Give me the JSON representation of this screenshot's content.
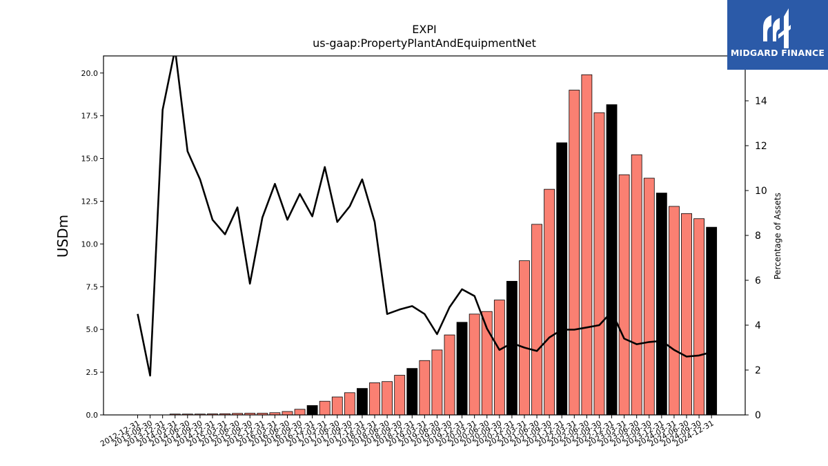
{
  "chart_data": {
    "type": "bar",
    "title": "EXPI",
    "subtitle": "us-gaap:PropertyPlantAndEquipmentNet",
    "ylabel": "USDm",
    "y2label": "Percentage of Assets",
    "ylim": [
      0,
      21
    ],
    "y2lim": [
      0,
      16
    ],
    "yticks": [
      "0.0",
      "2.5",
      "5.0",
      "7.5",
      "10.0",
      "12.5",
      "15.0",
      "17.5",
      "20.0"
    ],
    "y2ticks": [
      "0",
      "2",
      "4",
      "6",
      "8",
      "10",
      "12",
      "14"
    ],
    "categories": [
      "2012-12-31",
      "2013-09-30",
      "2013-12-31",
      "2014-03-31",
      "2014-06-30",
      "2014-09-30",
      "2014-12-31",
      "2015-03-31",
      "2015-06-30",
      "2015-09-30",
      "2015-12-31",
      "2016-03-31",
      "2016-06-30",
      "2016-09-30",
      "2016-12-31",
      "2017-03-31",
      "2017-06-30",
      "2017-09-30",
      "2017-12-31",
      "2018-03-31",
      "2018-06-30",
      "2018-09-30",
      "2018-12-31",
      "2019-03-31",
      "2019-06-30",
      "2019-09-30",
      "2019-12-31",
      "2020-03-31",
      "2020-06-30",
      "2020-09-30",
      "2020-12-31",
      "2021-03-31",
      "2021-06-30",
      "2021-09-30",
      "2021-12-31",
      "2022-03-31",
      "2022-06-30",
      "2022-09-30",
      "2022-12-31",
      "2023-03-31",
      "2023-06-30",
      "2023-09-30",
      "2023-12-31",
      "2024-03-31",
      "2024-06-30",
      "2024-09-30",
      "2024-12-31"
    ],
    "series": [
      {
        "axis": "left",
        "kind": "bar",
        "values": [
          0,
          0,
          0,
          0.05,
          0.05,
          0.05,
          0.06,
          0.07,
          0.09,
          0.1,
          0.1,
          0.13,
          0.2,
          0.33,
          0.55,
          0.8,
          1.05,
          1.3,
          1.55,
          1.88,
          1.95,
          2.32,
          2.72,
          3.18,
          3.8,
          4.68,
          5.42,
          5.9,
          6.05,
          6.72,
          7.82,
          9.02,
          11.15,
          13.2,
          15.92,
          19.0,
          19.9,
          17.68,
          18.15,
          14.05,
          15.22,
          13.85,
          12.98,
          12.2,
          11.78,
          11.48,
          10.98
        ],
        "colors": [
          "#fa8072",
          "#fa8072",
          "#fa8072",
          "#fa8072",
          "#fa8072",
          "#fa8072",
          "#fa8072",
          "#fa8072",
          "#fa8072",
          "#fa8072",
          "#fa8072",
          "#fa8072",
          "#fa8072",
          "#fa8072",
          "#000000",
          "#fa8072",
          "#fa8072",
          "#fa8072",
          "#000000",
          "#fa8072",
          "#fa8072",
          "#fa8072",
          "#000000",
          "#fa8072",
          "#fa8072",
          "#fa8072",
          "#000000",
          "#fa8072",
          "#fa8072",
          "#fa8072",
          "#000000",
          "#fa8072",
          "#fa8072",
          "#fa8072",
          "#000000",
          "#fa8072",
          "#fa8072",
          "#fa8072",
          "#000000",
          "#fa8072",
          "#fa8072",
          "#fa8072",
          "#000000",
          "#fa8072",
          "#fa8072",
          "#fa8072",
          "#000000"
        ]
      },
      {
        "axis": "right",
        "kind": "line",
        "color": "#000000",
        "values": [
          4.5,
          1.75,
          13.6,
          16.3,
          11.75,
          10.5,
          8.7,
          8.05,
          9.25,
          5.85,
          8.8,
          10.3,
          8.7,
          9.85,
          8.85,
          11.05,
          8.6,
          9.3,
          10.5,
          8.6,
          4.5,
          4.7,
          4.85,
          4.5,
          3.6,
          4.8,
          5.6,
          5.3,
          3.85,
          2.9,
          3.2,
          3.0,
          2.85,
          3.45,
          3.8,
          3.8,
          3.9,
          4.0,
          4.6,
          3.4,
          3.15,
          3.25,
          3.3,
          2.9,
          2.6,
          2.65,
          2.8
        ]
      }
    ]
  },
  "logo": {
    "name": "MIDGARD FINANCE"
  }
}
